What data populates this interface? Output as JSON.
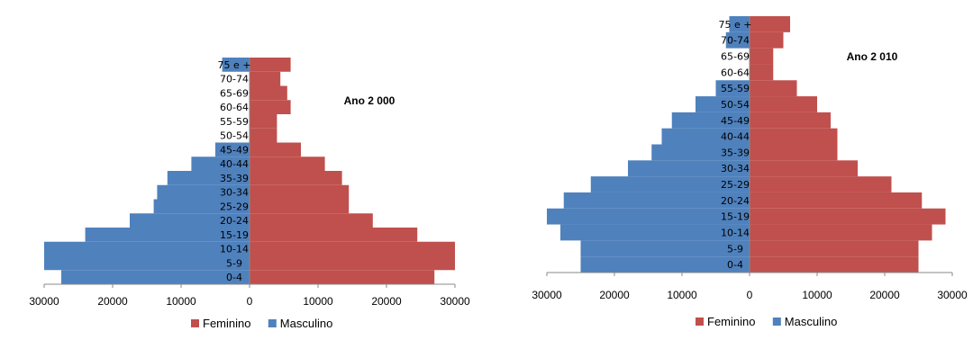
{
  "colors": {
    "feminino": "#c0504d",
    "masculino": "#4f81bd"
  },
  "chart_data": [
    {
      "type": "bar",
      "orientation": "horizontal-pyramid",
      "title": "Ano 2 000",
      "categories": [
        "0-4",
        "5-9",
        "10-14",
        "15-19",
        "20-24",
        "25-29",
        "30-34",
        "35-39",
        "40-44",
        "45-49",
        "50-54",
        "55-59",
        "60-64",
        "65-69",
        "70-74",
        "75 e +"
      ],
      "series": [
        {
          "name": "Feminino",
          "values": [
            27000,
            30000,
            30000,
            24500,
            18000,
            14500,
            14500,
            13500,
            11000,
            7500,
            4000,
            4000,
            6000,
            5500,
            4500,
            6000
          ]
        },
        {
          "name": "Masculino",
          "values": [
            27500,
            30000,
            30000,
            24000,
            17500,
            14000,
            13500,
            12000,
            8500,
            5000,
            0,
            0,
            0,
            0,
            0,
            4000
          ]
        }
      ],
      "xlim": [
        -30000,
        30000
      ],
      "xticks": [
        "30000",
        "20000",
        "10000",
        "0",
        "10000",
        "20000",
        "30000"
      ],
      "legend": {
        "position": "bottom",
        "items": [
          "Feminino",
          "Masculino"
        ]
      }
    },
    {
      "type": "bar",
      "orientation": "horizontal-pyramid",
      "title": "Ano 2 010",
      "categories": [
        "0-4",
        "5-9",
        "10-14",
        "15-19",
        "20-24",
        "25-29",
        "30-34",
        "35-39",
        "40-44",
        "45-49",
        "50-54",
        "55-59",
        "60-64",
        "65-69",
        "70-74",
        "75 e +"
      ],
      "series": [
        {
          "name": "Feminino",
          "values": [
            25000,
            25000,
            27000,
            29000,
            25500,
            21000,
            16000,
            13000,
            13000,
            12000,
            10000,
            7000,
            3500,
            3500,
            5000,
            6000
          ]
        },
        {
          "name": "Masculino",
          "values": [
            25000,
            25000,
            28000,
            30000,
            27500,
            23500,
            18000,
            14500,
            13000,
            11500,
            8000,
            5000,
            0,
            0,
            3500,
            3000
          ]
        }
      ],
      "xlim": [
        -30000,
        30000
      ],
      "xticks": [
        "30000",
        "20000",
        "10000",
        "0",
        "10000",
        "20000",
        "30000"
      ],
      "legend": {
        "position": "bottom",
        "items": [
          "Feminino",
          "Masculino"
        ]
      }
    }
  ]
}
